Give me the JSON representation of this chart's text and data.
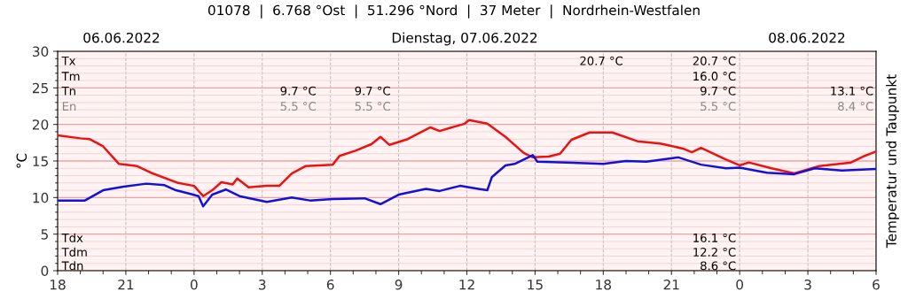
{
  "chart_data": {
    "type": "line",
    "title": "01078  |  6.768 °Ost  |  51.296 °Nord  |  37 Meter  |  Nordrhein-Westfalen",
    "ylabel": "°C",
    "y2label": "Temperatur und Taupunkt",
    "annotations": [
      "06.06.2022",
      "Dienstag, 07.06.2022",
      "08.06.2022",
      "Tx",
      "Tm",
      "Tn",
      "En",
      "9.7 °C",
      "5.5 °C",
      "9.7 °C",
      "5.5 °C",
      "20.7 °C",
      "20.7 °C",
      "16.0 °C",
      "9.7 °C",
      "5.5 °C",
      "13.1 °C",
      "8.4 °C",
      "Tdx",
      "Tdm",
      "Tdn",
      "16.1 °C",
      "12.2 °C",
      "8.6 °C"
    ],
    "xlim": [
      "2022-06-06T18:00",
      "2022-06-08T06:00"
    ],
    "xticks": [
      {
        "value": "2022-06-06T18:00",
        "label": "18"
      },
      {
        "value": "2022-06-06T21:00",
        "label": "21"
      },
      {
        "value": "2022-06-07T00:00",
        "label": "0"
      },
      {
        "value": "2022-06-07T03:00",
        "label": "3"
      },
      {
        "value": "2022-06-07T06:00",
        "label": "6"
      },
      {
        "value": "2022-06-07T09:00",
        "label": "9"
      },
      {
        "value": "2022-06-07T12:00",
        "label": "12"
      },
      {
        "value": "2022-06-07T15:00",
        "label": "15"
      },
      {
        "value": "2022-06-07T18:00",
        "label": "18"
      },
      {
        "value": "2022-06-07T21:00",
        "label": "21"
      },
      {
        "value": "2022-06-08T00:00",
        "label": "0"
      },
      {
        "value": "2022-06-08T03:00",
        "label": "3"
      },
      {
        "value": "2022-06-08T06:00",
        "label": "6"
      }
    ],
    "ylim": [
      0,
      30
    ],
    "yticks": [
      0,
      {
        "value": 1,
        "label": null
      },
      {
        "value": 2,
        "label": null
      },
      {
        "value": 3,
        "label": null
      },
      {
        "value": 4,
        "label": null
      },
      5,
      {
        "value": 6,
        "label": null
      },
      {
        "value": 7,
        "label": null
      },
      {
        "value": 8,
        "label": null
      },
      {
        "value": 9,
        "label": null
      },
      10,
      {
        "value": 11,
        "label": null
      },
      {
        "value": 12,
        "label": null
      },
      {
        "value": 13,
        "label": null
      },
      {
        "value": 14,
        "label": null
      },
      15,
      {
        "value": 16,
        "label": null
      },
      {
        "value": 17,
        "label": null
      },
      {
        "value": 18,
        "label": null
      },
      {
        "value": 19,
        "label": null
      },
      20,
      {
        "value": 21,
        "label": null
      },
      {
        "value": 22,
        "label": null
      },
      {
        "value": 23,
        "label": null
      },
      {
        "value": 24,
        "label": null
      },
      25,
      {
        "value": 26,
        "label": null
      },
      {
        "value": 27,
        "label": null
      },
      {
        "value": 28,
        "label": null
      },
      {
        "value": 29,
        "label": null
      },
      30
    ],
    "grid": true,
    "marker": "none",
    "line_style": "solid",
    "series": [
      {
        "color": "#ee1111",
        "x": [
          "2022-06-06T18:00",
          "2022-06-06T19:00",
          "2022-06-06T19:24",
          "2022-06-06T20:00",
          "2022-06-06T20:42",
          "2022-06-06T21:30",
          "2022-06-06T22:06",
          "2022-06-06T23:18",
          "2022-06-07T00:00",
          "2022-06-07T00:24",
          "2022-06-07T00:48",
          "2022-06-07T01:12",
          "2022-06-07T01:42",
          "2022-06-07T01:54",
          "2022-06-07T02:24",
          "2022-06-07T03:12",
          "2022-06-07T03:45",
          "2022-06-07T04:18",
          "2022-06-07T04:54",
          "2022-06-07T06:06",
          "2022-06-07T06:24",
          "2022-06-07T07:06",
          "2022-06-07T07:48",
          "2022-06-07T08:12",
          "2022-06-07T08:36",
          "2022-06-07T09:24",
          "2022-06-07T10:24",
          "2022-06-07T10:48",
          "2022-06-07T11:54",
          "2022-06-07T12:06",
          "2022-06-07T12:54",
          "2022-06-07T13:42",
          "2022-06-07T14:30",
          "2022-06-07T14:54",
          "2022-06-07T15:36",
          "2022-06-07T16:06",
          "2022-06-07T16:36",
          "2022-06-07T17:24",
          "2022-06-07T18:24",
          "2022-06-07T19:30",
          "2022-06-07T20:30",
          "2022-06-07T21:30",
          "2022-06-07T21:54",
          "2022-06-07T22:18",
          "2022-06-07T23:24",
          "2022-06-08T00:00",
          "2022-06-08T00:24",
          "2022-06-08T01:24",
          "2022-06-08T02:24",
          "2022-06-08T03:30",
          "2022-06-08T04:54",
          "2022-06-08T05:30",
          "2022-06-08T06:00"
        ],
        "values": [
          18.5,
          18.1,
          18.0,
          17.0,
          14.6,
          14.3,
          13.4,
          12.0,
          11.6,
          10.2,
          11.0,
          12.1,
          11.8,
          12.6,
          11.4,
          11.6,
          11.6,
          13.3,
          14.3,
          14.5,
          15.7,
          16.4,
          17.3,
          18.3,
          17.2,
          18.0,
          19.6,
          19.1,
          20.1,
          20.6,
          20.1,
          18.3,
          16.1,
          15.5,
          15.6,
          16.0,
          17.9,
          18.9,
          18.9,
          17.7,
          17.4,
          16.7,
          16.2,
          16.8,
          15.2,
          14.4,
          14.8,
          14.0,
          13.3,
          14.3,
          14.8,
          15.7,
          16.3
        ]
      },
      {
        "color": "#1111dd",
        "x": [
          "2022-06-06T18:00",
          "2022-06-06T19:12",
          "2022-06-06T20:00",
          "2022-06-06T20:54",
          "2022-06-06T21:54",
          "2022-06-06T22:42",
          "2022-06-06T23:12",
          "2022-06-06T23:51",
          "2022-06-07T00:12",
          "2022-06-07T00:24",
          "2022-06-07T00:48",
          "2022-06-07T01:24",
          "2022-06-07T02:00",
          "2022-06-07T03:12",
          "2022-06-07T04:18",
          "2022-06-07T05:06",
          "2022-06-07T06:06",
          "2022-06-07T07:30",
          "2022-06-07T08:12",
          "2022-06-07T09:00",
          "2022-06-07T10:12",
          "2022-06-07T10:48",
          "2022-06-07T11:42",
          "2022-06-07T12:30",
          "2022-06-07T12:54",
          "2022-06-07T13:06",
          "2022-06-07T13:42",
          "2022-06-07T14:06",
          "2022-06-07T14:54",
          "2022-06-07T15:06",
          "2022-06-07T16:24",
          "2022-06-07T18:00",
          "2022-06-07T19:00",
          "2022-06-07T19:54",
          "2022-06-07T21:18",
          "2022-06-07T22:18",
          "2022-06-07T23:24",
          "2022-06-08T00:00",
          "2022-06-08T01:12",
          "2022-06-08T02:24",
          "2022-06-08T03:18",
          "2022-06-08T04:30",
          "2022-06-08T06:00"
        ],
        "values": [
          9.6,
          9.6,
          11.0,
          11.5,
          11.9,
          11.7,
          11.0,
          10.5,
          10.2,
          8.8,
          10.4,
          11.1,
          10.2,
          9.4,
          10.0,
          9.6,
          9.8,
          9.9,
          9.1,
          10.4,
          11.2,
          10.9,
          11.6,
          11.2,
          11.0,
          12.8,
          14.4,
          14.6,
          15.8,
          14.9,
          14.8,
          14.6,
          15.0,
          14.9,
          15.5,
          14.5,
          14.0,
          14.1,
          13.4,
          13.2,
          14.0,
          13.7,
          13.9
        ]
      }
    ]
  }
}
